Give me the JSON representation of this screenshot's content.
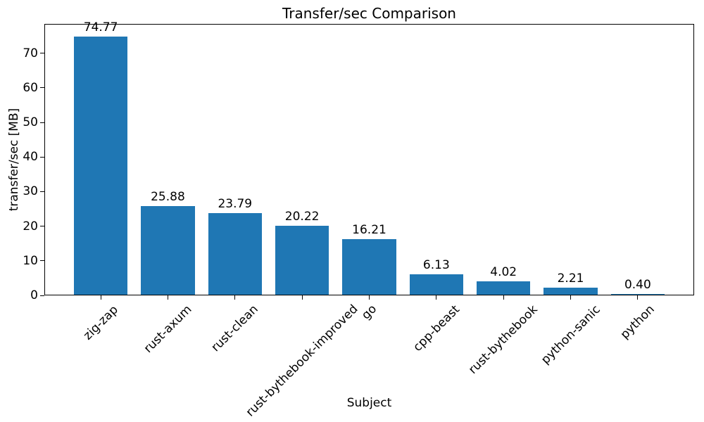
{
  "chart_data": {
    "type": "bar",
    "title": "Transfer/sec Comparison",
    "xlabel": "Subject",
    "ylabel": "transfer/sec [MB]",
    "categories": [
      "zig-zap",
      "rust-axum",
      "rust-clean",
      "rust-bythebook-improved",
      "go",
      "cpp-beast",
      "rust-bythebook",
      "python-sanic",
      "python"
    ],
    "values": [
      74.77,
      25.88,
      23.79,
      20.22,
      16.21,
      6.13,
      4.02,
      2.21,
      0.4
    ],
    "bar_value_labels": [
      "74.77",
      "25.88",
      "23.79",
      "20.22",
      "16.21",
      "6.13",
      "4.02",
      "2.21",
      "0.40"
    ],
    "yticks": [
      0,
      10,
      20,
      30,
      40,
      50,
      60,
      70
    ],
    "ylim": [
      0,
      78.5
    ],
    "bar_color": "#1f77b4",
    "text_color": "#000000",
    "background_color": "#ffffff",
    "grid": false,
    "legend": "none",
    "x_tick_rotation_deg": 45,
    "bar_width_fraction": 0.8
  }
}
